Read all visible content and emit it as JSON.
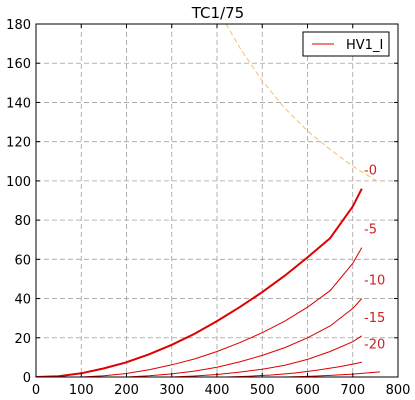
{
  "chart_data": {
    "type": "line",
    "title": "TC1/75",
    "xlabel": "",
    "ylabel": "",
    "xlim": [
      0,
      800
    ],
    "ylim": [
      0,
      180
    ],
    "xticks": [
      0,
      100,
      200,
      300,
      400,
      500,
      600,
      700,
      800
    ],
    "yticks": [
      0,
      20,
      40,
      60,
      80,
      100,
      120,
      140,
      160,
      180
    ],
    "grid": true,
    "legend": {
      "placement": "top-right",
      "entries": [
        "HV1_I"
      ]
    },
    "colors": {
      "curves": "#dd0000",
      "limit": "#f5c06a",
      "text": "#cc2222"
    },
    "series": [
      {
        "name": "HV1_I",
        "label": "-0",
        "bold": true,
        "x": [
          0,
          50,
          100,
          150,
          200,
          250,
          300,
          350,
          400,
          450,
          500,
          550,
          600,
          650,
          700,
          720
        ],
        "y": [
          0,
          0.4,
          1.9,
          4.4,
          7.5,
          11.6,
          16.4,
          22.0,
          28.5,
          35.6,
          43.3,
          51.7,
          61.0,
          70.8,
          87.0,
          96.0
        ]
      },
      {
        "label": "-5",
        "x": [
          100,
          150,
          200,
          250,
          300,
          350,
          400,
          450,
          500,
          550,
          600,
          650,
          700,
          720
        ],
        "y": [
          0,
          0.6,
          1.8,
          3.7,
          6.2,
          9.2,
          13.0,
          17.5,
          22.6,
          28.5,
          35.6,
          44.0,
          58.0,
          66.0
        ]
      },
      {
        "label": "-10",
        "x": [
          200,
          250,
          300,
          350,
          400,
          450,
          500,
          550,
          600,
          650,
          700,
          720
        ],
        "y": [
          0,
          0.6,
          1.6,
          3.0,
          5.0,
          7.7,
          11.0,
          15.0,
          20.0,
          26.0,
          35.0,
          40.0
        ]
      },
      {
        "label": "-15",
        "x": [
          300,
          350,
          400,
          450,
          500,
          550,
          600,
          650,
          700,
          720
        ],
        "y": [
          0,
          0.5,
          1.3,
          2.5,
          4.0,
          6.0,
          9.0,
          13.0,
          18.0,
          21.0
        ]
      },
      {
        "label": "-20",
        "x": [
          420,
          470,
          520,
          570,
          620,
          670,
          700,
          720
        ],
        "y": [
          0,
          0.4,
          1.0,
          2.0,
          3.4,
          5.2,
          6.6,
          7.5
        ]
      },
      {
        "label": "",
        "x": [
          550,
          600,
          650,
          700,
          760
        ],
        "y": [
          0,
          0.3,
          0.8,
          1.5,
          2.6
        ]
      },
      {
        "label": "",
        "style": "dashed-limit",
        "x": [
          420,
          450,
          500,
          550,
          600,
          650,
          700,
          760
        ],
        "y": [
          180,
          168,
          151,
          137,
          125.5,
          116,
          107.5,
          99
        ]
      }
    ]
  }
}
